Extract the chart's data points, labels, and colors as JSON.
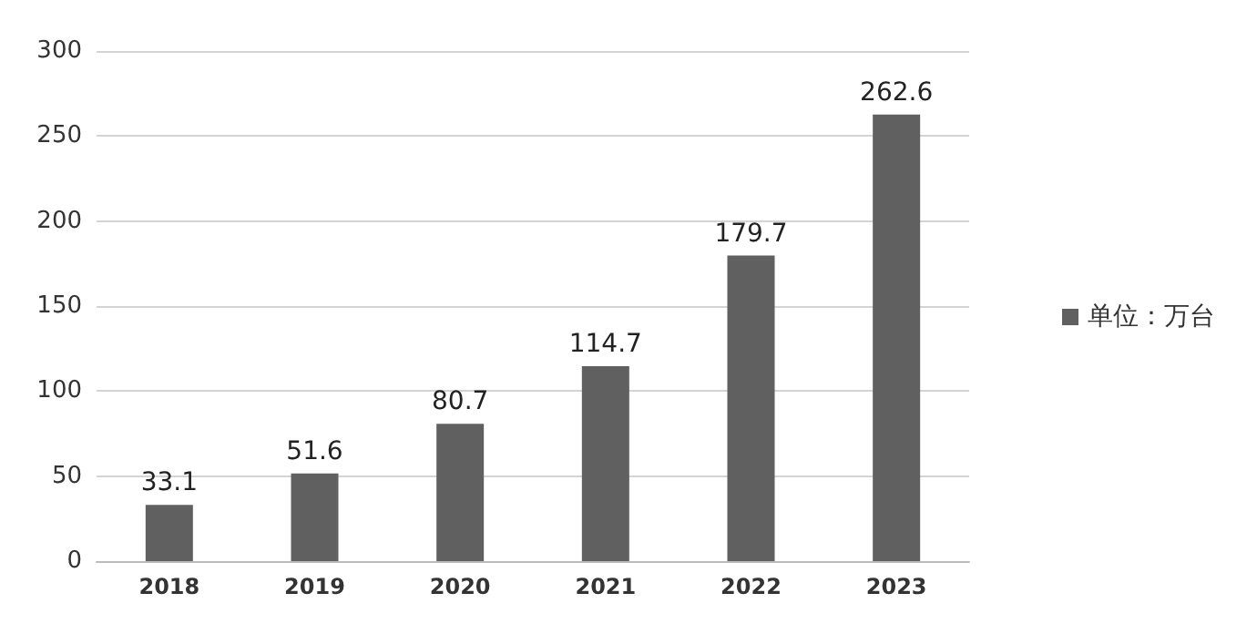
{
  "chart_data": {
    "type": "bar",
    "categories": [
      "2018",
      "2019",
      "2020",
      "2021",
      "2022",
      "2023"
    ],
    "series": [
      {
        "name": "单位：万台",
        "color": "#606060",
        "values": [
          33.1,
          51.6,
          80.7,
          114.7,
          179.7,
          262.6
        ]
      }
    ],
    "ylim": [
      0,
      300
    ],
    "yticks": [
      0,
      50,
      100,
      150,
      200,
      250,
      300
    ],
    "grid": "y",
    "legend": "right",
    "data_labels": true
  }
}
